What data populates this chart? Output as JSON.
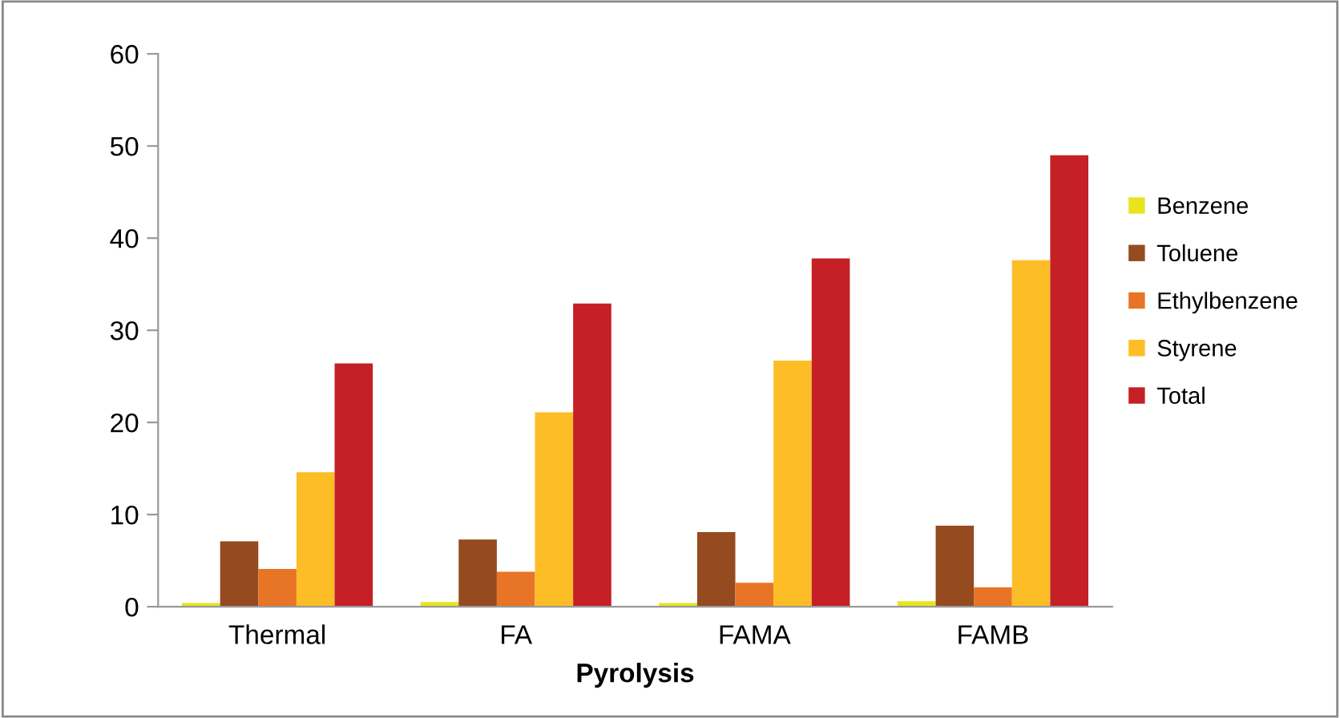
{
  "chart_data": {
    "type": "bar",
    "xlabel": "Pyrolysis",
    "categories": [
      "Thermal",
      "FA",
      "FAMA",
      "FAMB"
    ],
    "series": [
      {
        "name": "Benzene",
        "color": "#e8e41e",
        "values": [
          0.4,
          0.5,
          0.4,
          0.6
        ]
      },
      {
        "name": "Toluene",
        "color": "#954a20",
        "values": [
          7.1,
          7.3,
          8.1,
          8.8
        ]
      },
      {
        "name": "Ethylbenzene",
        "color": "#e87425",
        "values": [
          4.1,
          3.8,
          2.6,
          2.1
        ]
      },
      {
        "name": "Styrene",
        "color": "#fdbd27",
        "values": [
          14.6,
          21.1,
          26.7,
          37.6
        ]
      },
      {
        "name": "Total",
        "color": "#c42026",
        "values": [
          26.4,
          32.9,
          37.8,
          49.0
        ]
      }
    ],
    "ylim": [
      0,
      60
    ],
    "yticks": [
      0,
      10,
      20,
      30,
      40,
      50,
      60
    ],
    "grid": false,
    "legend": "right"
  }
}
